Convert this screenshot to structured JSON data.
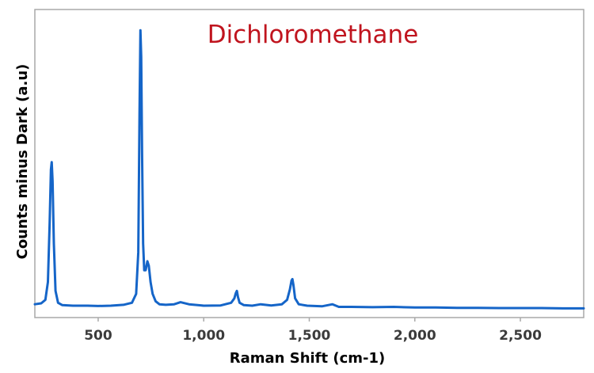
{
  "chart_data": {
    "type": "line",
    "title": "Dichloromethane",
    "xlabel": "Raman Shift (cm-1)",
    "ylabel": "Counts minus Dark (a.u)",
    "xlim": [
      200,
      2800
    ],
    "ylim": [
      0,
      1.0
    ],
    "x_ticks": [
      500,
      1000,
      1500,
      2000,
      2500
    ],
    "x_tick_labels": [
      "500",
      "1,000",
      "1,500",
      "2,000",
      "2,500"
    ],
    "y_ticks_shown": false,
    "grid": false,
    "legend": "none",
    "colors": {
      "line": "#1565c8",
      "title": "#c0141e",
      "frame": "#a9a9a9"
    },
    "series": [
      {
        "x": [
          200,
          230,
          250,
          262,
          270,
          276,
          280,
          284,
          290,
          298,
          310,
          330,
          380,
          450,
          500,
          560,
          620,
          660,
          680,
          690,
          696,
          700,
          704,
          708,
          713,
          718,
          725,
          733,
          740,
          748,
          758,
          772,
          790,
          820,
          860,
          890,
          930,
          1000,
          1080,
          1130,
          1145,
          1152,
          1157,
          1162,
          1170,
          1190,
          1230,
          1270,
          1320,
          1370,
          1395,
          1408,
          1416,
          1420,
          1425,
          1433,
          1450,
          1490,
          1560,
          1610,
          1640,
          1700,
          1800,
          1900,
          2000,
          2100,
          2200,
          2300,
          2400,
          2500,
          2600,
          2700,
          2800
        ],
        "y": [
          0.045,
          0.048,
          0.06,
          0.12,
          0.32,
          0.5,
          0.525,
          0.46,
          0.25,
          0.09,
          0.05,
          0.042,
          0.04,
          0.04,
          0.039,
          0.04,
          0.043,
          0.05,
          0.08,
          0.22,
          0.7,
          0.97,
          0.88,
          0.55,
          0.25,
          0.16,
          0.16,
          0.19,
          0.175,
          0.12,
          0.08,
          0.055,
          0.045,
          0.043,
          0.045,
          0.052,
          0.045,
          0.04,
          0.041,
          0.05,
          0.065,
          0.082,
          0.09,
          0.07,
          0.05,
          0.042,
          0.04,
          0.045,
          0.041,
          0.045,
          0.06,
          0.095,
          0.125,
          0.13,
          0.11,
          0.065,
          0.045,
          0.04,
          0.038,
          0.045,
          0.036,
          0.036,
          0.035,
          0.036,
          0.034,
          0.034,
          0.033,
          0.033,
          0.032,
          0.032,
          0.032,
          0.031,
          0.031
        ]
      }
    ]
  }
}
